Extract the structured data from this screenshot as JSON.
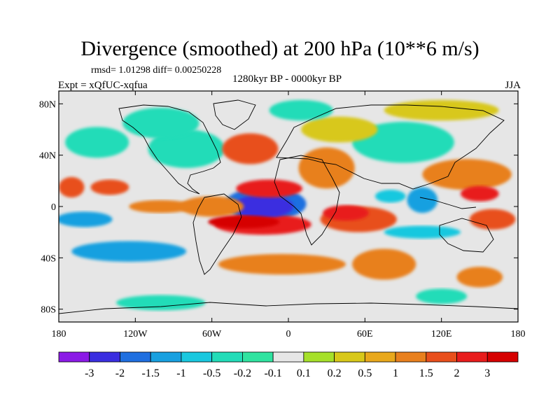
{
  "chart_data": {
    "type": "heatmap",
    "title": "Divergence (smoothed) at 200 hPa (10**6 m/s)",
    "stats_text": "rmsd= 1.01298 diff= 0.00250228",
    "period": "1280kyr BP - 0000kyr BP",
    "experiment": "Expt = xQfUC-xqfua",
    "season": "JJA",
    "x_ticks": [
      {
        "value": -180,
        "label": "180"
      },
      {
        "value": -120,
        "label": "120W"
      },
      {
        "value": -60,
        "label": "60W"
      },
      {
        "value": 0,
        "label": "0"
      },
      {
        "value": 60,
        "label": "60E"
      },
      {
        "value": 120,
        "label": "120E"
      },
      {
        "value": 180,
        "label": "180"
      }
    ],
    "y_ticks": [
      {
        "value": 80,
        "label": "80N"
      },
      {
        "value": 40,
        "label": "40N"
      },
      {
        "value": 0,
        "label": "0"
      },
      {
        "value": -40,
        "label": "40S"
      },
      {
        "value": -80,
        "label": "80S"
      }
    ],
    "xlim": [
      -180,
      180
    ],
    "ylim": [
      -90,
      90
    ],
    "colorbar": {
      "labels": [
        "-3",
        "-2",
        "-1.5",
        "-1",
        "-0.5",
        "-0.2",
        "-0.1",
        "0.1",
        "0.2",
        "0.5",
        "1",
        "1.5",
        "2",
        "3"
      ],
      "colors": [
        "#8b1ae6",
        "#3a2ee0",
        "#1f6fe0",
        "#18a0e0",
        "#19c8df",
        "#22dcb8",
        "#2fe3a0",
        "#e6e6e6",
        "#a6e02a",
        "#d8c81a",
        "#e8a81c",
        "#e8801e",
        "#e84f1c",
        "#e81c1c",
        "#d60000"
      ]
    },
    "field_blobs": [
      {
        "lon": -20,
        "lat": 0,
        "rlon": 24,
        "rlat": 9,
        "level": -3
      },
      {
        "lon": -18,
        "lat": 2,
        "rlon": 32,
        "rlat": 13,
        "level": -2
      },
      {
        "lon": -15,
        "lat": 14,
        "rlon": 26,
        "rlat": 7,
        "level": 2
      },
      {
        "lon": -20,
        "lat": -14,
        "rlon": 38,
        "rlat": 8,
        "level": 2
      },
      {
        "lon": -35,
        "lat": -12,
        "rlon": 28,
        "rlat": 5,
        "level": 3
      },
      {
        "lon": 55,
        "lat": -10,
        "rlon": 30,
        "rlat": 10,
        "level": 1.5
      },
      {
        "lon": 45,
        "lat": -5,
        "rlon": 18,
        "rlat": 6,
        "level": 2
      },
      {
        "lon": 30,
        "lat": 30,
        "rlon": 22,
        "rlat": 16,
        "level": 1
      },
      {
        "lon": 140,
        "lat": 25,
        "rlon": 35,
        "rlat": 12,
        "level": 1
      },
      {
        "lon": 160,
        "lat": -10,
        "rlon": 18,
        "rlat": 8,
        "level": 1.5
      },
      {
        "lon": 150,
        "lat": 10,
        "rlon": 15,
        "rlat": 6,
        "level": 2
      },
      {
        "lon": -170,
        "lat": 15,
        "rlon": 10,
        "rlat": 8,
        "level": 1.5
      },
      {
        "lon": -140,
        "lat": 15,
        "rlon": 15,
        "rlat": 6,
        "level": 1.5
      },
      {
        "lon": -60,
        "lat": 0,
        "rlon": 25,
        "rlat": 8,
        "level": 1
      },
      {
        "lon": -125,
        "lat": -35,
        "rlon": 45,
        "rlat": 8,
        "level": -1.5
      },
      {
        "lon": -160,
        "lat": -10,
        "rlon": 22,
        "rlat": 6,
        "level": -1.5
      },
      {
        "lon": -100,
        "lat": 0,
        "rlon": 25,
        "rlat": 5,
        "level": 1
      },
      {
        "lon": 105,
        "lat": 5,
        "rlon": 12,
        "rlat": 10,
        "level": -1.5
      },
      {
        "lon": 105,
        "lat": -20,
        "rlon": 30,
        "rlat": 5,
        "level": -1
      },
      {
        "lon": 80,
        "lat": 8,
        "rlon": 12,
        "rlat": 5,
        "level": -1
      },
      {
        "lon": -30,
        "lat": 45,
        "rlon": 22,
        "rlat": 12,
        "level": 1.5
      },
      {
        "lon": -80,
        "lat": 45,
        "rlon": 30,
        "rlat": 15,
        "level": -0.5
      },
      {
        "lon": 90,
        "lat": 50,
        "rlon": 40,
        "rlat": 16,
        "level": -0.5
      },
      {
        "lon": 40,
        "lat": 60,
        "rlon": 30,
        "rlat": 10,
        "level": 0.2
      },
      {
        "lon": 120,
        "lat": 75,
        "rlon": 45,
        "rlat": 8,
        "level": 0.2
      },
      {
        "lon": -100,
        "lat": 65,
        "rlon": 30,
        "rlat": 12,
        "level": -0.5
      },
      {
        "lon": -5,
        "lat": -45,
        "rlon": 50,
        "rlat": 8,
        "level": 1
      },
      {
        "lon": 75,
        "lat": -45,
        "rlon": 25,
        "rlat": 12,
        "level": 1
      },
      {
        "lon": -100,
        "lat": -75,
        "rlon": 35,
        "rlat": 6,
        "level": -0.5
      },
      {
        "lon": 120,
        "lat": -70,
        "rlon": 20,
        "rlat": 6,
        "level": -0.5
      },
      {
        "lon": 150,
        "lat": -55,
        "rlon": 18,
        "rlat": 8,
        "level": 1
      },
      {
        "lon": -150,
        "lat": 50,
        "rlon": 25,
        "rlat": 12,
        "level": -0.5
      },
      {
        "lon": 10,
        "lat": 75,
        "rlon": 25,
        "rlat": 8,
        "level": -0.5
      }
    ]
  }
}
